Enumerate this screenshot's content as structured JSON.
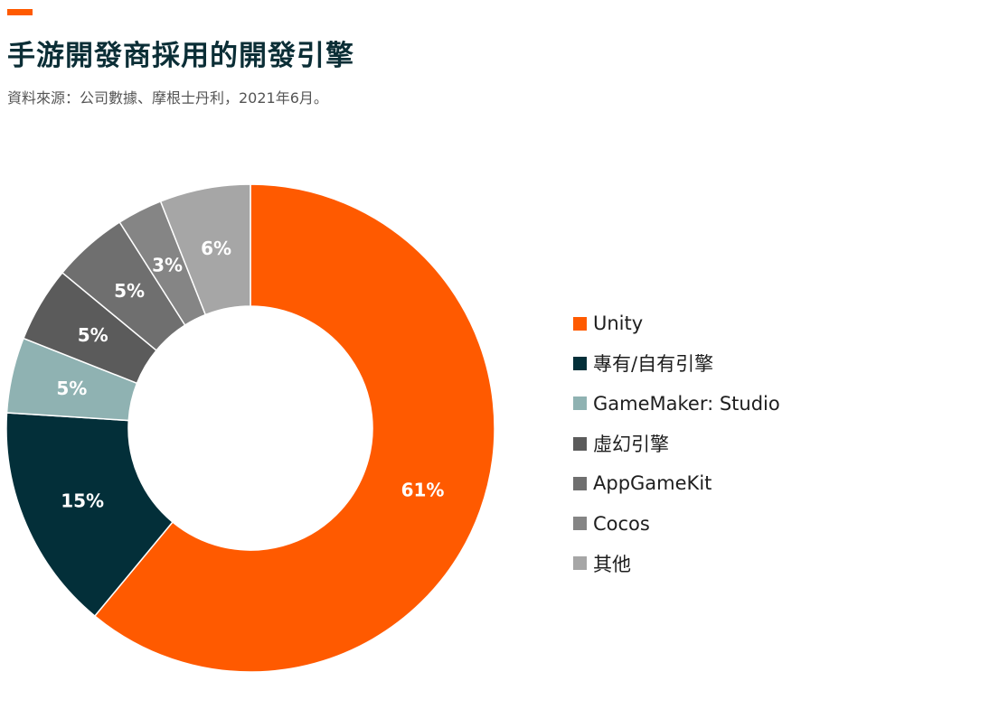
{
  "header": {
    "title": "手游開發商採用的開發引擎",
    "subtitle": "資料來源：公司數據、摩根士丹利，2021年6月。",
    "accent_color": "#FF5A00"
  },
  "chart_data": {
    "type": "pie",
    "style": "donut",
    "title": "手游開發商採用的開發引擎",
    "subtitle": "資料來源：公司數據、摩根士丹利，2021年6月。",
    "legend_position": "right",
    "categories": [
      "Unity",
      "專有/自有引擎",
      "GameMaker: Studio",
      "虛幻引擎",
      "AppGameKit",
      "Cocos",
      "其他"
    ],
    "values": [
      61,
      15,
      5,
      5,
      5,
      3,
      6
    ],
    "labels": [
      "61%",
      "15%",
      "5%",
      "5%",
      "5%",
      "3%",
      "6%"
    ],
    "colors": [
      "#FF5A00",
      "#032F39",
      "#8FB2B2",
      "#5B5B5B",
      "#6F6F6F",
      "#858585",
      "#A6A6A6"
    ],
    "unit": "%"
  }
}
